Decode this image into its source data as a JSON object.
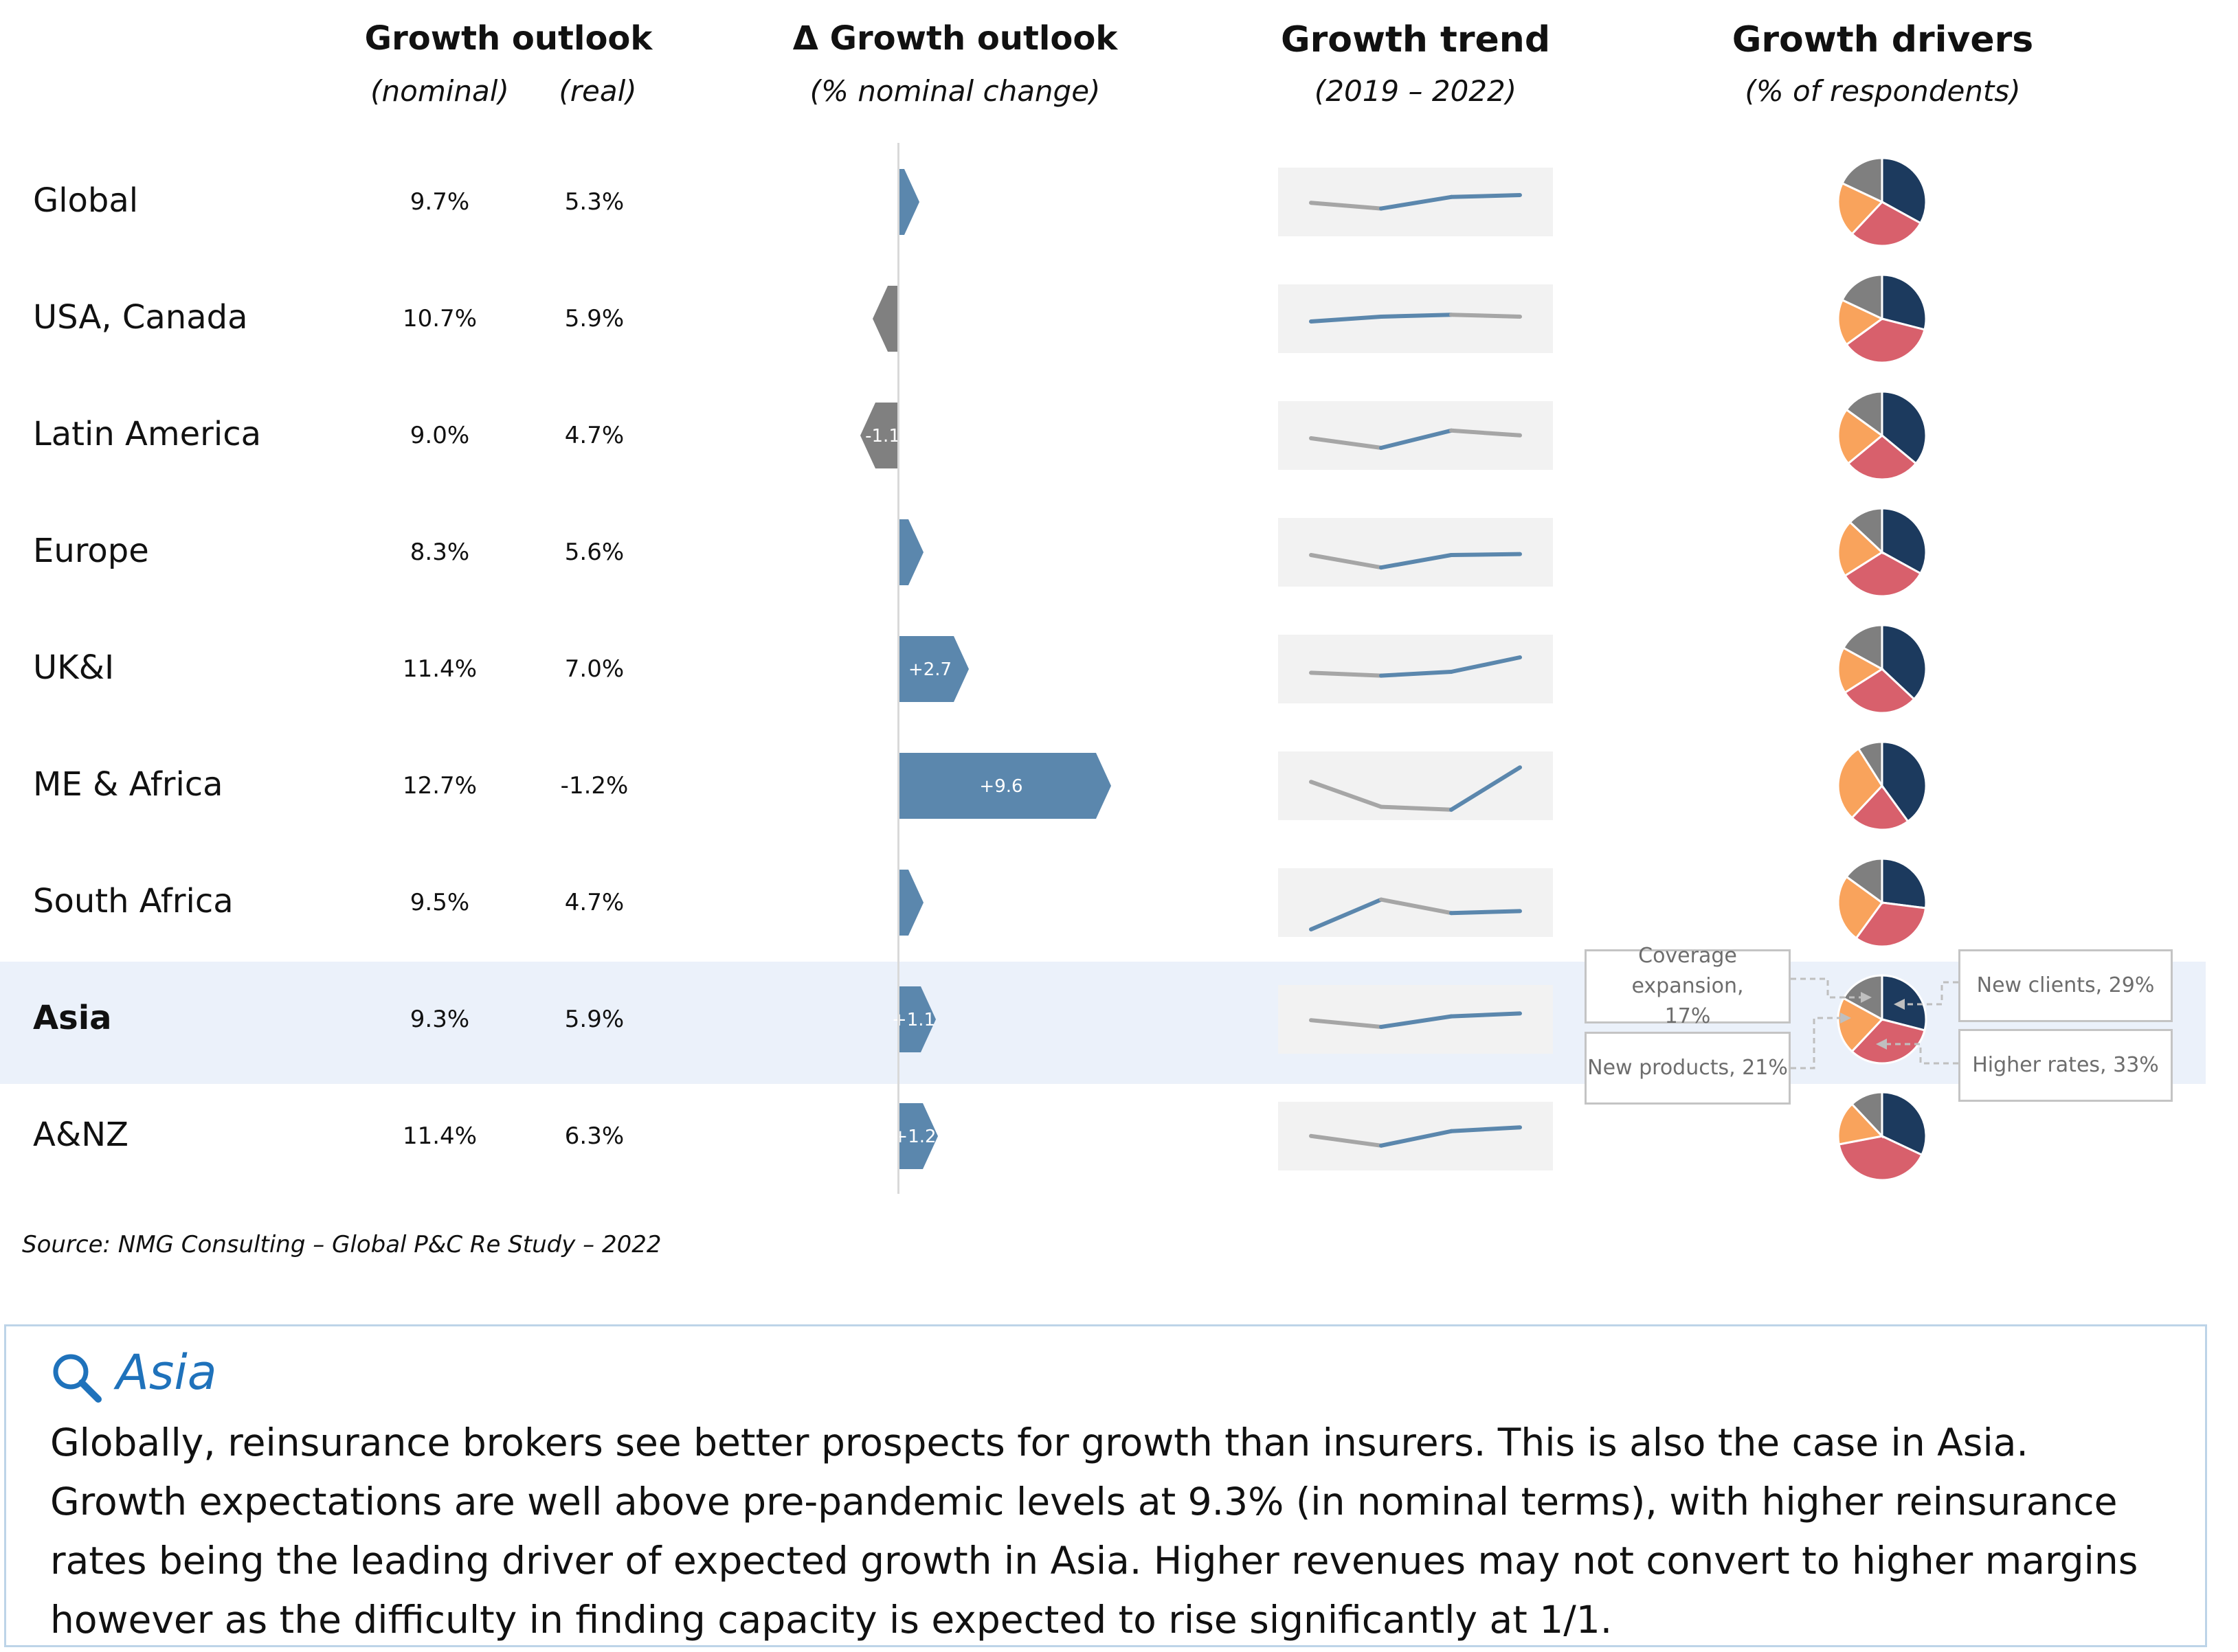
{
  "headers": {
    "growth_outlook": "Growth outlook",
    "nominal": "(nominal)",
    "real": "(real)",
    "delta": "Δ Growth outlook",
    "delta_sub": "(% nominal change)",
    "trend": "Growth trend",
    "trend_sub": "(2019 – 2022)",
    "drivers": "Growth drivers",
    "drivers_sub": "(% of respondents)"
  },
  "colors": {
    "positive": "#5b87ad",
    "negative": "#808080",
    "trend_up": "#5b87ad",
    "trend_down": "#a6a6a6",
    "trend_bg": "#f2f2f2",
    "new_clients": "#1c3a5e",
    "higher_rates": "#d8606c",
    "new_products": "#f9a35c",
    "coverage": "#7f7f7f",
    "highlight": "#ebf1fa",
    "title_blue": "#1f72bb"
  },
  "chart_data": {
    "type": "table",
    "columns": [
      "Growth outlook (nominal)",
      "Growth outlook (real)",
      "Δ Growth outlook (% nominal change)",
      "Growth trend (2019 – 2022)",
      "Growth drivers (% of respondents)"
    ],
    "rows": [
      {
        "region": "Global",
        "nominal": "9.7%",
        "real": "5.3%",
        "delta": 0.3,
        "delta_label": "",
        "trend": [
          3.2,
          2.6,
          3.8,
          4.0
        ],
        "drivers": [
          33,
          29,
          20,
          18
        ]
      },
      {
        "region": "USA, Canada",
        "nominal": "10.7%",
        "real": "5.9%",
        "delta": -0.5,
        "delta_label": "",
        "trend": [
          3.0,
          3.5,
          3.7,
          3.5
        ],
        "drivers": [
          29,
          36,
          17,
          18
        ]
      },
      {
        "region": "Latin America",
        "nominal": "9.0%",
        "real": "4.7%",
        "delta": -1.1,
        "delta_label": "-1.1",
        "trend": [
          3.0,
          2.0,
          3.8,
          3.3
        ],
        "drivers": [
          36,
          28,
          21,
          15
        ]
      },
      {
        "region": "Europe",
        "nominal": "8.3%",
        "real": "5.6%",
        "delta": 0.5,
        "delta_label": "",
        "trend": [
          3.0,
          1.7,
          3.0,
          3.1
        ],
        "drivers": [
          33,
          33,
          21,
          13
        ]
      },
      {
        "region": "UK&I",
        "nominal": "11.4%",
        "real": "7.0%",
        "delta": 2.7,
        "delta_label": "+2.7",
        "trend": [
          2.9,
          2.6,
          3.0,
          4.5
        ],
        "drivers": [
          37,
          29,
          17,
          17
        ]
      },
      {
        "region": "ME & Africa",
        "nominal": "12.7%",
        "real": "-1.2%",
        "delta": 9.6,
        "delta_label": "+9.6",
        "trend": [
          3.7,
          1.1,
          0.8,
          5.2
        ],
        "drivers": [
          40,
          22,
          29,
          9
        ]
      },
      {
        "region": "South Africa",
        "nominal": "9.5%",
        "real": "4.7%",
        "delta": 0.5,
        "delta_label": "",
        "trend": [
          0.5,
          3.6,
          2.2,
          2.4
        ],
        "drivers": [
          27,
          33,
          25,
          15
        ]
      },
      {
        "region": "Asia",
        "nominal": "9.3%",
        "real": "5.9%",
        "delta": 1.1,
        "delta_label": "+1.1",
        "trend": [
          3.2,
          2.5,
          3.6,
          3.9
        ],
        "drivers": [
          29,
          33,
          21,
          17
        ],
        "highlighted": true
      },
      {
        "region": "A&NZ",
        "nominal": "11.4%",
        "real": "6.3%",
        "delta": 1.2,
        "delta_label": "+1.2",
        "trend": [
          3.3,
          2.3,
          3.8,
          4.2
        ],
        "drivers": [
          32,
          40,
          16,
          12
        ]
      }
    ],
    "driver_series": [
      "New clients",
      "Higher rates",
      "New products",
      "Coverage expansion"
    ]
  },
  "callouts": {
    "coverage": "Coverage expansion, 17%",
    "new_products": "New products, 21%",
    "new_clients": "New clients, 29%",
    "higher_rates": "Higher rates, 33%"
  },
  "source": "Source: NMG Consulting – Global P&C Re Study – 2022",
  "note": {
    "icon": "search-icon",
    "title": "Asia",
    "body": "Globally, reinsurance brokers see better prospects for growth than insurers. This is also the case in Asia. Growth expectations are well above pre-pandemic levels at 9.3% (in nominal terms), with higher reinsurance rates being the leading driver of expected growth in Asia. Higher revenues may not convert to higher margins however as the difficulty in finding capacity is expected to rise significantly at 1/1."
  }
}
